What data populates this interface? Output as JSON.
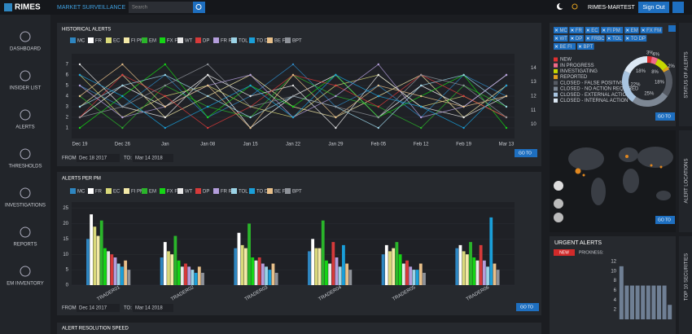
{
  "header": {
    "logo": "RIMES",
    "app_title": "MARKET SURVEILLANCE",
    "search_placeholder": "Search",
    "user": "RIMES-MARTEST",
    "sign_out": "Sign Out"
  },
  "sidebar": [
    "DASHBOARD",
    "INSIDER LIST",
    "ALERTS",
    "THRESHOLDS",
    "INVESTIGATIONS",
    "REPORTS",
    "EM INVENTORY"
  ],
  "panels": {
    "historical": {
      "from_label": "FROM:",
      "from": "Dec 18 2017",
      "to_label": "TO:",
      "to": "Mar 14 2018",
      "go": "GO TO"
    },
    "per_pm": {
      "from_label": "FROM:",
      "from": "Dec 14 2017",
      "to_label": "TO:",
      "to": "Mar 14 2018",
      "go": "GO TO"
    },
    "resolution": {
      "title": "ALERT RESOLUTION SPEED"
    },
    "status": {
      "chips": [
        "MC",
        "FR",
        "EC",
        "FI PM",
        "EM",
        "FX FM",
        "WT",
        "DP",
        "FRBC",
        "TOL",
        "TO DP",
        "BE FI",
        "BPT"
      ],
      "go": "GO TO"
    },
    "locations": {
      "tab": "ALERT LOCATIONS",
      "go": "GO TO"
    },
    "urgent": {
      "tab": "TOP 10 SECURITIES",
      "badge": "NEW",
      "filter": "PRICKNESS:"
    }
  },
  "chart_data": [
    {
      "type": "line",
      "title": "HISTORICAL ALERTS",
      "categories": [
        "Dec 19",
        "Dec 26",
        "Jan",
        "Jan 08",
        "Jan 15",
        "Jan 22",
        "Jan 29",
        "Feb 05",
        "Feb 12",
        "Feb 19",
        "Mar 13"
      ],
      "ylim": [
        0,
        8
      ],
      "yticks": [
        1,
        2,
        3,
        4,
        5,
        6,
        7
      ],
      "y2lim": [
        9,
        15
      ],
      "y2ticks": [
        10,
        11,
        12,
        13,
        14
      ],
      "series": [
        {
          "name": "MC",
          "color": "#2e86c1",
          "values": [
            5,
            3,
            6,
            2,
            4,
            7,
            3,
            5,
            2,
            6,
            4
          ]
        },
        {
          "name": "FR",
          "color": "#ffffff",
          "values": [
            2,
            5,
            3,
            6,
            1,
            4,
            6,
            2,
            5,
            3,
            6
          ]
        },
        {
          "name": "EC",
          "color": "#d9d97a",
          "values": [
            6,
            2,
            4,
            5,
            3,
            2,
            5,
            6,
            3,
            4,
            2
          ]
        },
        {
          "name": "FI PM",
          "color": "#f3e9a8",
          "values": [
            3,
            6,
            2,
            4,
            6,
            3,
            2,
            4,
            6,
            2,
            5
          ]
        },
        {
          "name": "EM",
          "color": "#2ab52a",
          "values": [
            4,
            1,
            5,
            3,
            2,
            6,
            4,
            3,
            1,
            5,
            3
          ]
        },
        {
          "name": "FX FM",
          "color": "#15d515",
          "values": [
            1,
            4,
            7,
            2,
            5,
            3,
            6,
            2,
            4,
            6,
            1
          ]
        },
        {
          "name": "WT",
          "color": "#e8e8e8",
          "values": [
            7,
            3,
            2,
            6,
            4,
            5,
            1,
            6,
            3,
            2,
            4
          ]
        },
        {
          "name": "DP",
          "color": "#d63a3a",
          "values": [
            2,
            6,
            4,
            1,
            3,
            6,
            5,
            3,
            6,
            4,
            2
          ]
        },
        {
          "name": "FR RC",
          "color": "#b39ddb",
          "values": [
            5,
            2,
            3,
            5,
            6,
            2,
            4,
            7,
            2,
            3,
            6
          ]
        },
        {
          "name": "TOL",
          "color": "#9bd3e6",
          "values": [
            3,
            5,
            6,
            4,
            2,
            4,
            3,
            1,
            5,
            6,
            3
          ]
        },
        {
          "name": "TO DP",
          "color": "#1a9fd9",
          "values": [
            6,
            4,
            1,
            3,
            5,
            2,
            6,
            4,
            3,
            1,
            5
          ]
        },
        {
          "name": "BE FI",
          "color": "#e8c08a",
          "values": [
            4,
            7,
            3,
            5,
            1,
            6,
            2,
            5,
            4,
            3,
            4
          ]
        },
        {
          "name": "BPT",
          "color": "#8e9299",
          "values": [
            2,
            3,
            5,
            7,
            3,
            4,
            3,
            2,
            6,
            5,
            2
          ]
        }
      ]
    },
    {
      "type": "bar",
      "title": "ALERTS PER PM",
      "categories": [
        "TRADER01",
        "TRADER02",
        "TRADER03",
        "TRADER04",
        "TRADER05",
        "TRADER06"
      ],
      "ylim": [
        0,
        27
      ],
      "yticks": [
        0,
        5,
        10,
        15,
        20,
        25
      ],
      "series": [
        {
          "name": "MC",
          "color": "#2e86c1",
          "values": [
            15,
            9,
            12,
            11,
            10,
            12
          ]
        },
        {
          "name": "FR",
          "color": "#ffffff",
          "values": [
            23,
            14,
            17,
            15,
            13,
            13
          ]
        },
        {
          "name": "EC",
          "color": "#d9d97a",
          "values": [
            19,
            11,
            13,
            12,
            11,
            11
          ]
        },
        {
          "name": "FI PM",
          "color": "#f3e9a8",
          "values": [
            16,
            10,
            12,
            12,
            12,
            10
          ]
        },
        {
          "name": "EM",
          "color": "#2ab52a",
          "values": [
            21,
            16,
            20,
            21,
            14,
            14
          ]
        },
        {
          "name": "FX FM",
          "color": "#15d515",
          "values": [
            12,
            8,
            9,
            8,
            10,
            9
          ]
        },
        {
          "name": "WT",
          "color": "#e8e8e8",
          "values": [
            11,
            6,
            8,
            7,
            7,
            8
          ]
        },
        {
          "name": "DP",
          "color": "#d63a3a",
          "values": [
            10,
            7,
            9,
            14,
            8,
            13
          ]
        },
        {
          "name": "FR RC",
          "color": "#b39ddb",
          "values": [
            9,
            6,
            7,
            9,
            6,
            8
          ]
        },
        {
          "name": "TOL",
          "color": "#9bd3e6",
          "values": [
            7,
            5,
            6,
            6,
            5,
            6
          ]
        },
        {
          "name": "TO DP",
          "color": "#1a9fd9",
          "values": [
            6,
            4,
            5,
            13,
            5,
            22
          ]
        },
        {
          "name": "BE FI",
          "color": "#e8c08a",
          "values": [
            8,
            6,
            7,
            7,
            7,
            7
          ]
        },
        {
          "name": "BPT",
          "color": "#8e9299",
          "values": [
            5,
            4,
            4,
            5,
            4,
            5
          ]
        }
      ]
    },
    {
      "type": "pie",
      "title": "STATUS OF ALERTS",
      "categories": [
        "NEW",
        "IN PROGRESS",
        "INVESTIGATING",
        "REPORTED",
        "CLOSED - FALSE POSITIVE",
        "CLOSED - NO ACTION REQUIRED",
        "CLOSED - EXTERNAL ACTION",
        "CLOSED - INTERNAL ACTION"
      ],
      "values": [
        3,
        4,
        8,
        2,
        18,
        25,
        22,
        18
      ],
      "value_labels": [
        "3%",
        "4%",
        "8%",
        "2%",
        "18%",
        "25%",
        "22%",
        "18%"
      ],
      "colors": [
        "#e03030",
        "#f06a8a",
        "#c6d800",
        "#e0a020",
        "#555a63",
        "#7d8794",
        "#a8c4e0",
        "#dce8f4"
      ]
    },
    {
      "type": "bar",
      "title": "URGENT ALERTS",
      "color": "#6f7f94",
      "values": [
        11,
        7,
        7,
        7,
        7,
        7,
        7,
        7,
        7,
        3
      ],
      "ylim": [
        0,
        13
      ],
      "yticks": [
        2,
        4,
        6,
        8,
        10,
        12
      ]
    }
  ]
}
